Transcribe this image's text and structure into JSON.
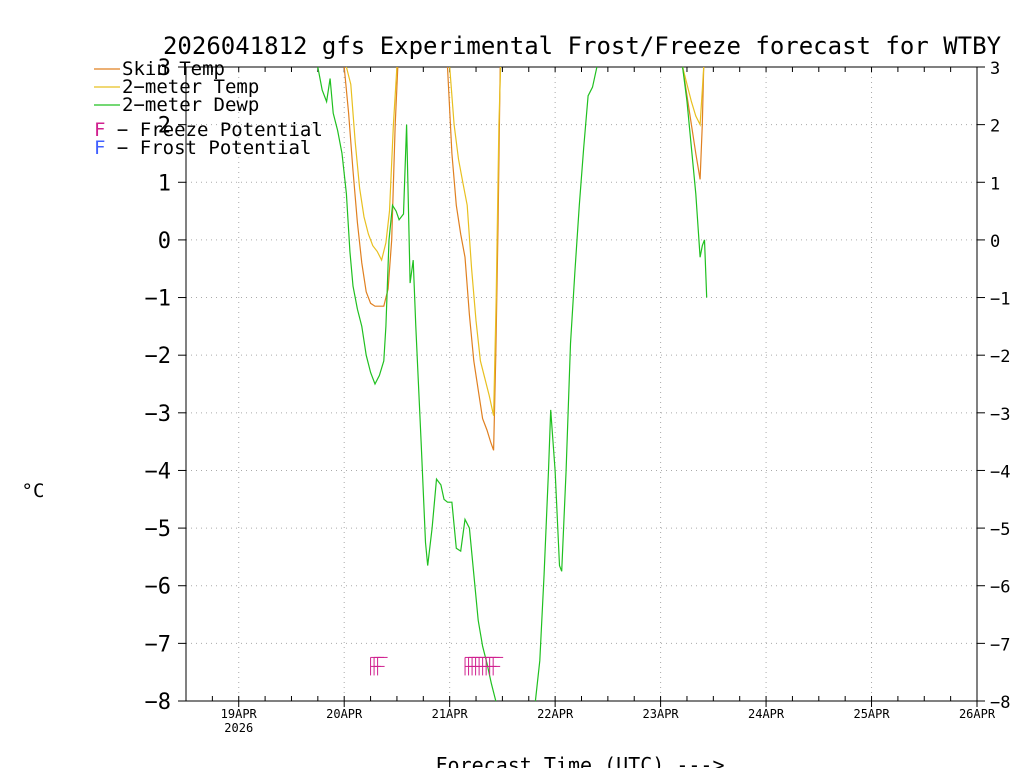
{
  "chart_data": {
    "type": "line",
    "title": "2026041812 gfs Experimental Frost/Freeze forecast for WTBY",
    "xlabel": "Forecast Time (UTC) --->",
    "ylabel": "°C",
    "ylim": [
      -8,
      3
    ],
    "xlim_hours": [
      0,
      180
    ],
    "grid": true,
    "y_ticks": [
      {
        "v": 3,
        "label": "3"
      },
      {
        "v": 2,
        "label": "2"
      },
      {
        "v": 1,
        "label": "1"
      },
      {
        "v": 0,
        "label": "0"
      },
      {
        "v": -1,
        "label": "−1"
      },
      {
        "v": -2,
        "label": "−2"
      },
      {
        "v": -3,
        "label": "−3"
      },
      {
        "v": -4,
        "label": "−4"
      },
      {
        "v": -5,
        "label": "−5"
      },
      {
        "v": -6,
        "label": "−6"
      },
      {
        "v": -7,
        "label": "−7"
      },
      {
        "v": -8,
        "label": "−8"
      }
    ],
    "x_ticks": [
      {
        "h": 12,
        "label": "19APR",
        "sub": "2026"
      },
      {
        "h": 36,
        "label": "20APR",
        "sub": ""
      },
      {
        "h": 60,
        "label": "21APR",
        "sub": ""
      },
      {
        "h": 84,
        "label": "22APR",
        "sub": ""
      },
      {
        "h": 108,
        "label": "23APR",
        "sub": ""
      },
      {
        "h": 132,
        "label": "24APR",
        "sub": ""
      },
      {
        "h": 156,
        "label": "25APR",
        "sub": ""
      },
      {
        "h": 180,
        "label": "26APR",
        "sub": ""
      }
    ],
    "legend": {
      "placement": "top-left",
      "series_entries": [
        "Skin Temp",
        "2−meter Temp",
        "2−meter Dewp"
      ],
      "marker_entries": [
        {
          "letter": "F",
          "text": " − Freeze Potential",
          "color": "#d0208f"
        },
        {
          "letter": "F",
          "text": " − Frost Potential",
          "color": "#4060ff"
        }
      ]
    },
    "series": [
      {
        "name": "Skin Temp",
        "color": "#e08020",
        "segments": [
          [
            [
              36,
              3.0
            ],
            [
              37,
              2.2
            ],
            [
              38,
              1.2
            ],
            [
              39,
              0.3
            ],
            [
              40,
              -0.4
            ],
            [
              41,
              -0.9
            ],
            [
              42,
              -1.1
            ],
            [
              43,
              -1.15
            ],
            [
              44,
              -1.15
            ],
            [
              45,
              -1.15
            ],
            [
              46,
              -0.85
            ],
            [
              46.8,
              0.0
            ],
            [
              47.6,
              2.0
            ],
            [
              48.2,
              3.0
            ]
          ],
          [
            [
              59.5,
              3.0
            ],
            [
              60.5,
              1.5
            ],
            [
              61.5,
              0.6
            ],
            [
              62.5,
              0.1
            ],
            [
              63.5,
              -0.3
            ],
            [
              64.5,
              -1.3
            ],
            [
              65.5,
              -2.1
            ],
            [
              66.5,
              -2.6
            ],
            [
              67.5,
              -3.1
            ],
            [
              68.5,
              -3.3
            ],
            [
              69.3,
              -3.5
            ],
            [
              70,
              -3.65
            ],
            [
              70.5,
              -2.0
            ],
            [
              71,
              0.2
            ],
            [
              71.5,
              3.0
            ]
          ],
          [
            [
              113,
              3.0
            ],
            [
              114,
              2.5
            ],
            [
              115,
              2.0
            ],
            [
              116,
              1.5
            ],
            [
              117,
              1.05
            ],
            [
              117.5,
              2.0
            ],
            [
              117.8,
              3.0
            ]
          ]
        ]
      },
      {
        "name": "2−meter Temp",
        "color": "#e8c020",
        "segments": [
          [
            [
              36.5,
              3.0
            ],
            [
              37.5,
              2.7
            ],
            [
              38.5,
              1.7
            ],
            [
              39.5,
              0.9
            ],
            [
              40.5,
              0.4
            ],
            [
              41.5,
              0.1
            ],
            [
              42.5,
              -0.1
            ],
            [
              43.5,
              -0.2
            ],
            [
              44.5,
              -0.35
            ],
            [
              45.5,
              -0.05
            ],
            [
              46.3,
              0.5
            ],
            [
              47.2,
              2.0
            ],
            [
              48,
              3.0
            ]
          ],
          [
            [
              60,
              3.0
            ],
            [
              61,
              2.0
            ],
            [
              62,
              1.4
            ],
            [
              63,
              1.0
            ],
            [
              64,
              0.6
            ],
            [
              65,
              -0.5
            ],
            [
              66,
              -1.4
            ],
            [
              67,
              -2.1
            ],
            [
              68,
              -2.4
            ],
            [
              69,
              -2.7
            ],
            [
              70,
              -3.05
            ],
            [
              70.6,
              -1.0
            ],
            [
              71.2,
              2.0
            ],
            [
              71.6,
              3.0
            ]
          ],
          [
            [
              113,
              3.0
            ],
            [
              114,
              2.7
            ],
            [
              115,
              2.4
            ],
            [
              116,
              2.15
            ],
            [
              117,
              2.0
            ],
            [
              117.5,
              2.6
            ],
            [
              117.8,
              3.0
            ]
          ]
        ]
      },
      {
        "name": "2−meter Dewp",
        "color": "#20c020",
        "segments": [
          [
            [
              30,
              3.0
            ],
            [
              31,
              2.6
            ],
            [
              32,
              2.4
            ],
            [
              32.8,
              2.8
            ],
            [
              33.5,
              2.2
            ],
            [
              34.5,
              1.9
            ],
            [
              35.5,
              1.5
            ],
            [
              36.5,
              0.8
            ],
            [
              37.3,
              -0.2
            ],
            [
              38,
              -0.8
            ],
            [
              39,
              -1.2
            ],
            [
              40,
              -1.5
            ],
            [
              41,
              -2.0
            ],
            [
              42,
              -2.3
            ],
            [
              43,
              -2.5
            ],
            [
              44,
              -2.35
            ],
            [
              45,
              -2.1
            ],
            [
              45.5,
              -1.5
            ],
            [
              46.2,
              0.0
            ],
            [
              47,
              0.6
            ],
            [
              47.8,
              0.5
            ],
            [
              48.5,
              0.35
            ],
            [
              49.5,
              0.45
            ],
            [
              50.2,
              2.0
            ],
            [
              51,
              -0.75
            ],
            [
              51.7,
              -0.35
            ],
            [
              52.3,
              -1.5
            ],
            [
              53.5,
              -3.5
            ],
            [
              54.5,
              -5.25
            ],
            [
              55,
              -5.65
            ],
            [
              56,
              -5.0
            ],
            [
              57,
              -4.15
            ],
            [
              58,
              -4.25
            ],
            [
              58.7,
              -4.5
            ],
            [
              59.5,
              -4.55
            ],
            [
              60.5,
              -4.55
            ],
            [
              61.5,
              -5.35
            ],
            [
              62.5,
              -5.4
            ],
            [
              63.5,
              -4.85
            ],
            [
              64.5,
              -5.0
            ],
            [
              65.5,
              -5.8
            ],
            [
              66.5,
              -6.6
            ],
            [
              67.5,
              -7.05
            ],
            [
              68.5,
              -7.35
            ],
            [
              69.5,
              -7.7
            ],
            [
              70.5,
              -8.0
            ]
          ],
          [
            [
              79.5,
              -8.0
            ],
            [
              80.5,
              -7.3
            ],
            [
              81.5,
              -5.8
            ],
            [
              82.5,
              -4.0
            ],
            [
              83,
              -2.95
            ],
            [
              84,
              -4.0
            ],
            [
              85,
              -5.65
            ],
            [
              85.5,
              -5.75
            ],
            [
              86.5,
              -4.0
            ],
            [
              87.5,
              -1.8
            ],
            [
              88.5,
              -0.55
            ],
            [
              89.5,
              0.6
            ],
            [
              90.5,
              1.6
            ],
            [
              91.5,
              2.5
            ],
            [
              92.5,
              2.65
            ],
            [
              93.5,
              3.0
            ]
          ],
          [
            [
              113,
              3.0
            ],
            [
              114,
              2.4
            ],
            [
              115,
              1.6
            ],
            [
              116,
              0.8
            ],
            [
              117,
              -0.3
            ],
            [
              117.5,
              -0.1
            ],
            [
              118,
              0.0
            ],
            [
              118.5,
              -1.0
            ]
          ]
        ]
      }
    ],
    "freeze_markers": {
      "letter": "F",
      "color": "#d0208f",
      "hours": [
        42,
        42.8,
        43.6,
        63.5,
        64.3,
        65.1,
        65.9,
        66.7,
        67.5,
        68.3,
        69.1,
        69.9
      ],
      "value": -7.4
    }
  }
}
